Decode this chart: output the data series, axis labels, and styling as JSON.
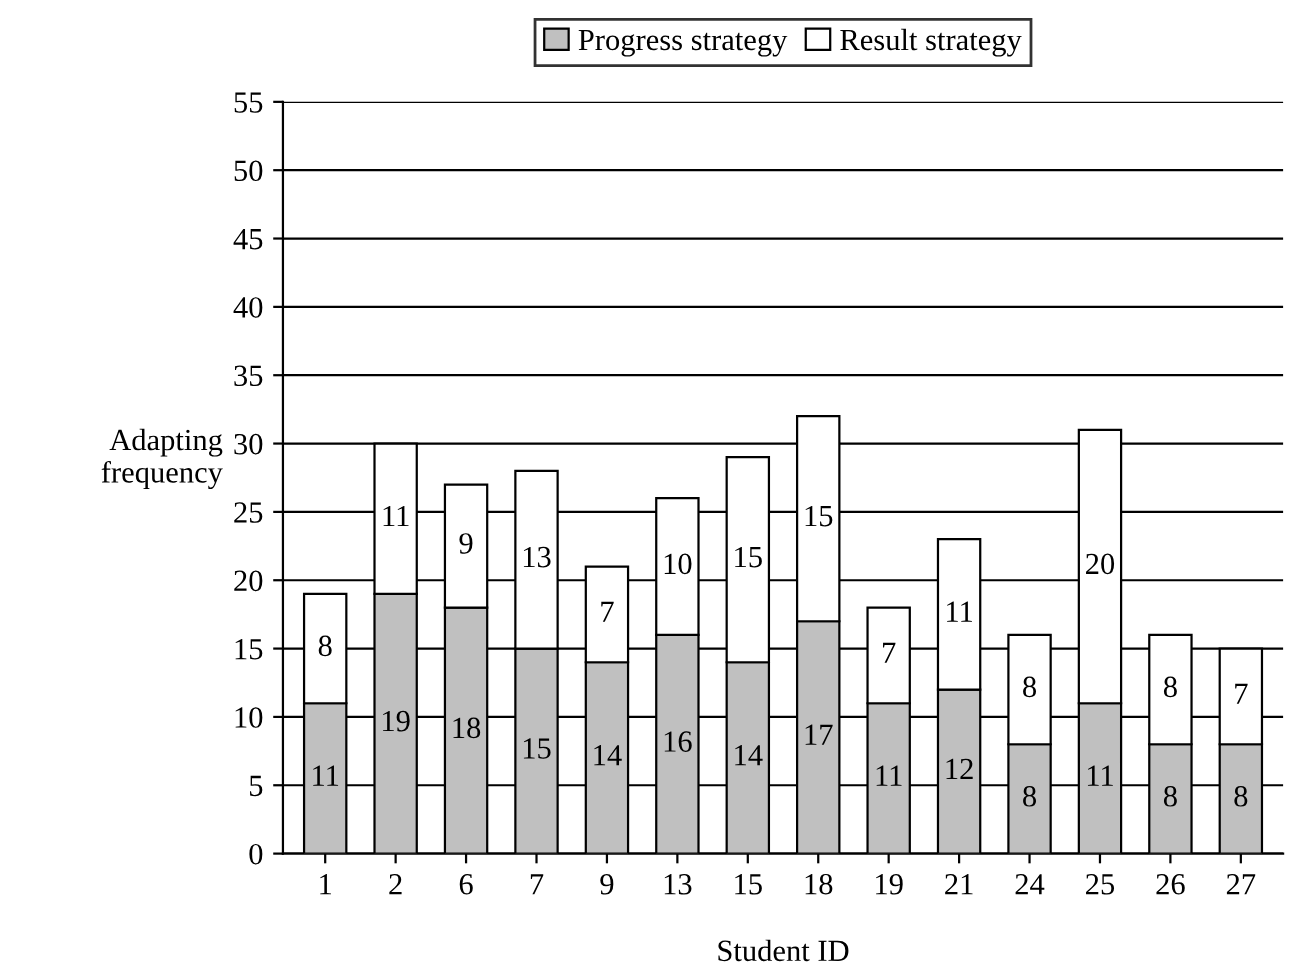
{
  "chart_data": {
    "type": "bar",
    "stacked": true,
    "xlabel": "Student ID",
    "ylabel": "Adapting\nfrequency",
    "categories": [
      "1",
      "2",
      "6",
      "7",
      "9",
      "13",
      "15",
      "18",
      "19",
      "21",
      "24",
      "25",
      "26",
      "27"
    ],
    "series": [
      {
        "name": "Progress strategy",
        "color": "#c0c0c0",
        "values": [
          11,
          19,
          18,
          15,
          14,
          16,
          14,
          17,
          11,
          12,
          8,
          11,
          8,
          8
        ]
      },
      {
        "name": "Result strategy",
        "color": "#ffffff",
        "values": [
          8,
          11,
          9,
          13,
          7,
          10,
          15,
          15,
          7,
          11,
          8,
          20,
          8,
          7
        ]
      }
    ],
    "ylim": [
      0,
      55
    ],
    "yticks": [
      0,
      5,
      10,
      15,
      20,
      25,
      30,
      35,
      40,
      45,
      50,
      55
    ],
    "grid": "y",
    "legend": "top",
    "data_labels": true
  }
}
